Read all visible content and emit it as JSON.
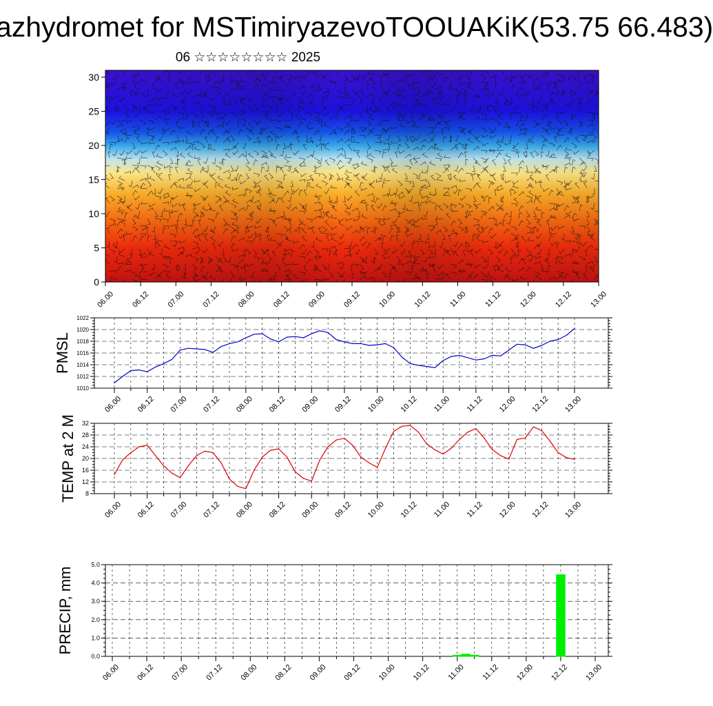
{
  "title": "azhydromet for MSTimiryazevoTOOUAKiK(53.75 66.483)",
  "subtitle": "06 ☆☆☆☆☆☆☆☆ 2025",
  "colors": {
    "pmsl_line": "#0000cc",
    "temp_line": "#dd0000",
    "precip_bar": "#00ee00",
    "cross_section_warm": "#cc0000",
    "cross_section_cold": "#3300cc"
  },
  "chart_data": [
    {
      "type": "heatmap",
      "title": "",
      "xlabel": "",
      "ylabel": "",
      "x_ticks": [
        "06.00",
        "06.12",
        "07.00",
        "07.12",
        "08.00",
        "08.12",
        "09.00",
        "09.12",
        "10.00",
        "10.12",
        "11.00",
        "11.12",
        "12.00",
        "12.12",
        "13.00"
      ],
      "y_ticks": [
        "0",
        "5",
        "10",
        "15",
        "20",
        "25",
        "30"
      ],
      "ylim": [
        0,
        31
      ],
      "colorscale_bands": [
        {
          "level": 0,
          "color": "#c41212"
        },
        {
          "level": 5,
          "color": "#ee2a0c"
        },
        {
          "level": 9,
          "color": "#f56a12"
        },
        {
          "level": 13,
          "color": "#fbb02a"
        },
        {
          "level": 16,
          "color": "#fde88a"
        },
        {
          "level": 18,
          "color": "#bfe6f2"
        },
        {
          "level": 20,
          "color": "#36a8ec"
        },
        {
          "level": 22,
          "color": "#1552ea"
        },
        {
          "level": 25,
          "color": "#1c12e0"
        },
        {
          "level": 31,
          "color": "#3c10cc"
        }
      ],
      "overlay": "wind barbs"
    },
    {
      "type": "line",
      "ylabel": "PMSL",
      "ylim": [
        1010,
        1022
      ],
      "y_ticks": [
        "1010",
        "1012",
        "1014",
        "1016",
        "1018",
        "1020",
        "1022"
      ],
      "x_ticks": [
        "06.00",
        "06.12",
        "07.00",
        "07.12",
        "08.00",
        "08.12",
        "09.00",
        "09.12",
        "10.00",
        "10.12",
        "11.00",
        "11.12",
        "12.00",
        "12.12",
        "13.00"
      ],
      "grid": true,
      "series": [
        {
          "values": [
            1010.9,
            1012.0,
            1013.0,
            1013.1,
            1012.8,
            1013.6,
            1014.2,
            1014.9,
            1016.5,
            1016.8,
            1016.7,
            1016.6,
            1016.1,
            1017.1,
            1017.6,
            1017.9,
            1018.6,
            1019.2,
            1019.3,
            1018.4,
            1017.9,
            1018.7,
            1018.8,
            1018.6,
            1019.3,
            1019.8,
            1019.5,
            1018.3,
            1017.9,
            1017.6,
            1017.6,
            1017.3,
            1017.4,
            1017.6,
            1016.9,
            1015.3,
            1014.2,
            1013.9,
            1013.7,
            1013.5,
            1014.7,
            1015.4,
            1015.6,
            1015.2,
            1014.8,
            1015.0,
            1015.6,
            1015.5,
            1016.5,
            1017.5,
            1017.4,
            1016.8,
            1017.3,
            1018.0,
            1018.3,
            1019.0,
            1020.2
          ]
        }
      ]
    },
    {
      "type": "line",
      "ylabel": "TEMP at 2 M",
      "ylim": [
        8,
        32
      ],
      "y_ticks": [
        "8",
        "12",
        "16",
        "20",
        "24",
        "28",
        "32"
      ],
      "x_ticks": [
        "06.00",
        "06.12",
        "07.00",
        "07.12",
        "08.00",
        "08.12",
        "09.00",
        "09.12",
        "10.00",
        "10.12",
        "11.00",
        "11.12",
        "12.00",
        "12.12",
        "13.00"
      ],
      "grid": true,
      "series": [
        {
          "values": [
            14.5,
            19.5,
            22.0,
            24.0,
            24.5,
            21.0,
            17.5,
            15.0,
            13.5,
            17.5,
            21.0,
            22.5,
            22.0,
            18.5,
            13.0,
            10.5,
            9.7,
            16.0,
            20.5,
            22.8,
            23.3,
            20.5,
            15.5,
            13.2,
            12.3,
            19.5,
            24.0,
            26.3,
            26.9,
            24.5,
            20.5,
            18.5,
            17.0,
            23.5,
            29.3,
            31.0,
            31.3,
            29.0,
            25.0,
            23.0,
            21.5,
            23.5,
            26.5,
            29.0,
            30.2,
            27.0,
            23.0,
            21.0,
            19.8,
            26.5,
            27.0,
            30.8,
            29.5,
            26.0,
            22.0,
            20.3,
            19.7
          ]
        }
      ]
    },
    {
      "type": "bar",
      "ylabel": "PRECIP, mm",
      "ylim": [
        0,
        5
      ],
      "y_ticks": [
        "0.0",
        "1.0",
        "2.0",
        "3.0",
        "4.0",
        "5.0"
      ],
      "x_ticks": [
        "06.00",
        "06.12",
        "07.00",
        "07.12",
        "08.00",
        "08.12",
        "09.00",
        "09.12",
        "10.00",
        "10.12",
        "11.00",
        "11.12",
        "12.00",
        "12.12",
        "13.00"
      ],
      "grid": true,
      "series": [
        {
          "values": [
            0,
            0,
            0,
            0,
            0,
            0,
            0,
            0,
            0,
            0,
            0,
            0,
            0,
            0,
            0,
            0,
            0,
            0,
            0,
            0,
            0,
            0,
            0,
            0,
            0,
            0,
            0,
            0,
            0,
            0,
            0,
            0,
            0,
            0,
            0,
            0,
            0,
            0,
            0,
            0,
            0.06,
            0.12,
            0.06,
            0,
            0,
            0,
            0,
            0,
            0,
            0,
            0,
            0,
            4.45,
            0,
            0,
            0,
            0
          ]
        }
      ]
    }
  ]
}
